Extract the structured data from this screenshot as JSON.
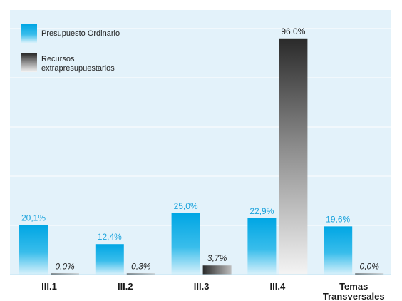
{
  "chart_data": {
    "type": "bar",
    "categories": [
      [
        "III.1"
      ],
      [
        "III.2"
      ],
      [
        "III.3"
      ],
      [
        "III.4"
      ],
      [
        "Temas",
        "Transversales"
      ]
    ],
    "series": [
      {
        "name": "Presupuesto Ordinario",
        "values": [
          20.1,
          12.4,
          25.0,
          22.9,
          19.6
        ],
        "labels": [
          "20,1%",
          "12,4%",
          "25,0%",
          "22,9%",
          "19,6%"
        ],
        "color": "#1ba3dc"
      },
      {
        "name_lines": [
          "Recursos",
          "extrapresupuestarios"
        ],
        "values": [
          0.0,
          0.3,
          3.7,
          96.0,
          0.0
        ],
        "labels": [
          "0,0%",
          "0,3%",
          "3,7%",
          "96,0%",
          "0,0%"
        ],
        "color": "#333333"
      }
    ],
    "ylim": [
      0,
      100
    ],
    "grid": true,
    "legend": "top-left",
    "background": "#e3f2fa"
  }
}
